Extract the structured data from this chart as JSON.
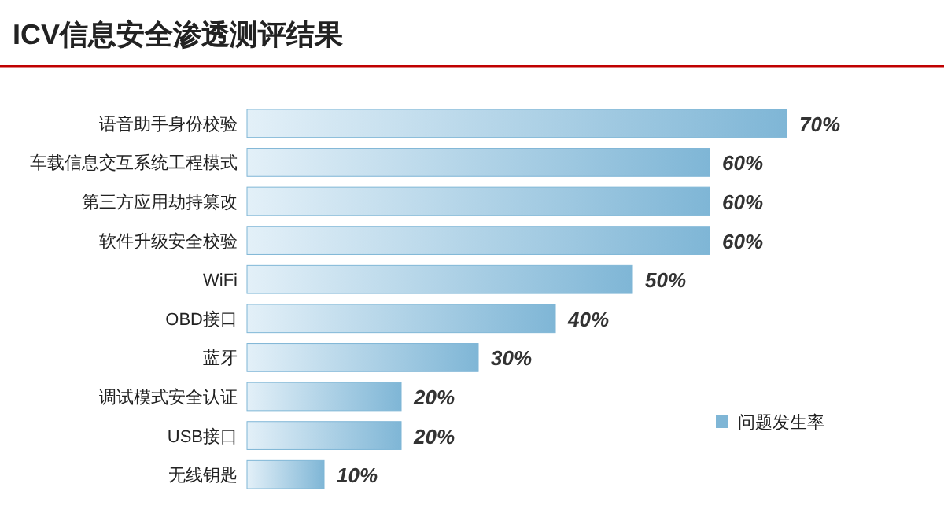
{
  "chart_data": {
    "type": "bar",
    "orientation": "horizontal",
    "title": "ICV信息安全渗透测评结果",
    "categories": [
      "语音助手身份校验",
      "车载信息交互系统工程模式",
      "第三方应用劫持篡改",
      "软件升级安全校验",
      "WiFi",
      "OBD接口",
      "蓝牙",
      "调试模式安全认证",
      "USB接口",
      "无线钥匙"
    ],
    "series": [
      {
        "name": "问题发生率",
        "color": "#7fb6d6",
        "values": [
          70,
          60,
          60,
          60,
          50,
          40,
          30,
          20,
          20,
          10
        ],
        "value_labels": [
          "70%",
          "60%",
          "60%",
          "60%",
          "50%",
          "40%",
          "30%",
          "20%",
          "20%",
          "10%"
        ]
      }
    ],
    "legend": "bottom right"
  }
}
